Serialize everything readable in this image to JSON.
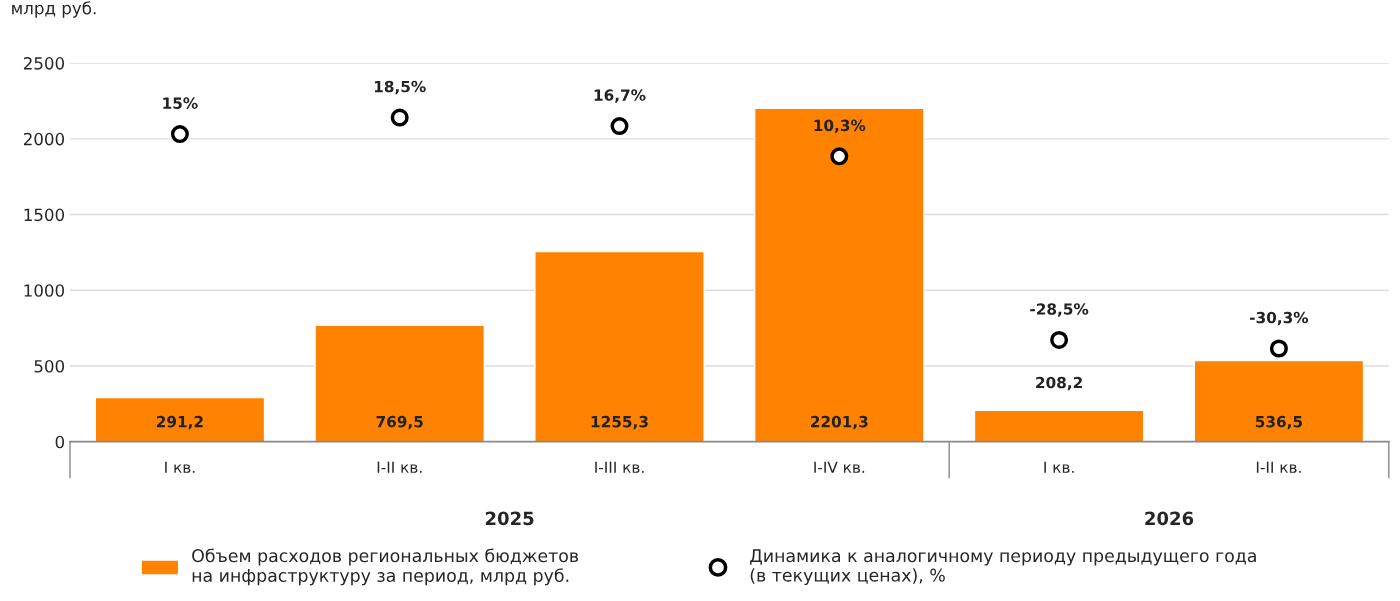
{
  "chart_data": {
    "type": "bar",
    "ylabel": "млрд руб.",
    "categories": [
      "I кв.",
      "I-II кв.",
      "I-III кв.",
      "I-IV кв.",
      "I кв.",
      "I-II кв."
    ],
    "series": [
      {
        "name": "Объем расходов региональных бюджетов\nна инфраструктуру за период, млрд руб.",
        "color": "#ff8200",
        "values": [
          291.2,
          769.5,
          1255.3,
          2201.3,
          208.2,
          536.5
        ],
        "value_labels": [
          "291,2",
          "769,5",
          "1255,3",
          "2201,3",
          "208,2",
          "536,5"
        ]
      },
      {
        "name": "Динамика к аналогичному периоду предыдущего года\n(в текущих ценах), %",
        "type": "scatter",
        "axis": "y2",
        "color": "#000000",
        "marker": "circle",
        "values": [
          15,
          18.5,
          16.7,
          10.3,
          -28.5,
          -30.3
        ],
        "value_labels": [
          "15%",
          "18,5%",
          "16,7%",
          "10,3%",
          "-28,5%",
          "-30,3%"
        ]
      }
    ],
    "ylim": [
      0,
      2500
    ],
    "yticks": [
      0,
      500,
      1000,
      1500,
      2000,
      2500
    ],
    "y2lim": [
      -50,
      30
    ],
    "grid": "y",
    "legend": "bottom",
    "annotations": [
      "2025",
      "2026"
    ]
  }
}
